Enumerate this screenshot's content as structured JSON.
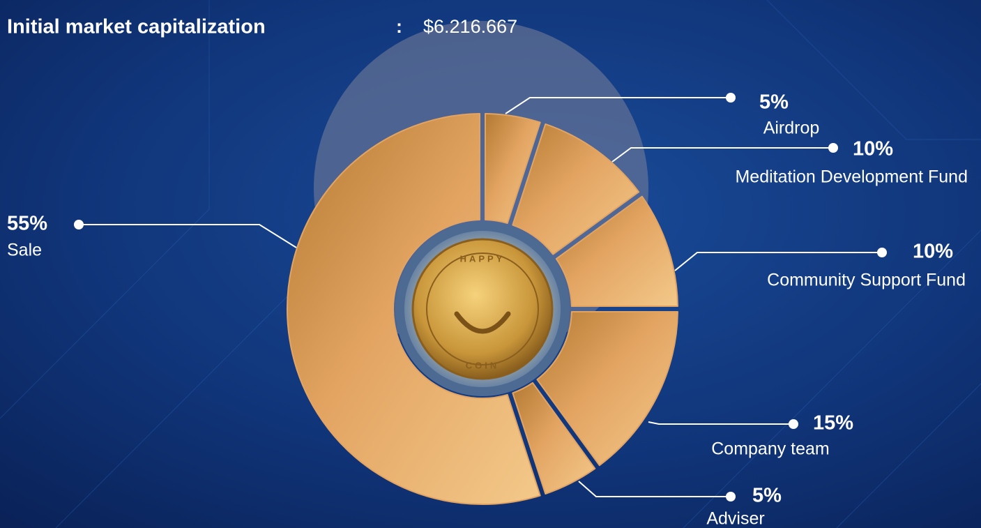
{
  "chart_data": {
    "type": "pie",
    "title": "Initial market capitalization",
    "title_separator": ":",
    "subtitle": "$6.216.667",
    "categories": [
      "Airdrop",
      "Meditation Development Fund",
      "Community Support Fund",
      "Company team",
      "Adviser",
      "Sale"
    ],
    "values": [
      5,
      10,
      10,
      15,
      5,
      55
    ],
    "value_labels": [
      "5%",
      "10%",
      "10%",
      "15%",
      "5%",
      "55%"
    ],
    "color": "#e3a462",
    "center_label": {
      "top": "HAPPY",
      "bottom": "COIN"
    }
  }
}
